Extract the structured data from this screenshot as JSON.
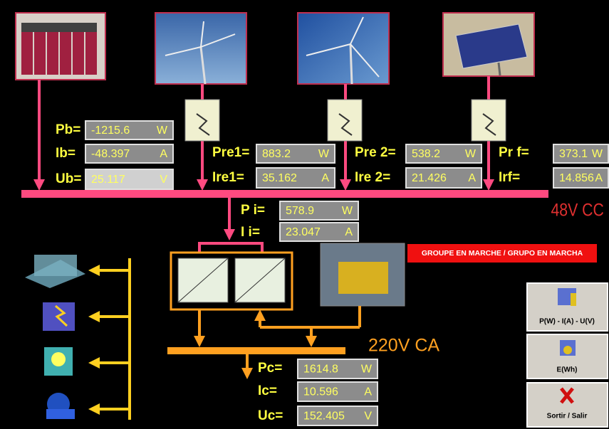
{
  "readings": [
    {
      "label": "Pb=",
      "value": -1215.6,
      "unit": "W"
    },
    {
      "label": "Ib=",
      "value": -48.397,
      "unit": "A"
    },
    {
      "label": "Ub=",
      "value": 25.117,
      "unit": "V",
      "value_color": "#e82020"
    },
    {
      "label": "Pre1=",
      "value": 883.2,
      "unit": "W"
    },
    {
      "label": "Ire1=",
      "value": 35.162,
      "unit": "A"
    },
    {
      "label": "Pre 2=",
      "value": 538.2,
      "unit": "W"
    },
    {
      "label": "Ire 2=",
      "value": 21.426,
      "unit": "A"
    },
    {
      "label": "Pr f=",
      "value": 373.1,
      "unit": "W"
    },
    {
      "label": "Irf=",
      "value": 14.856,
      "unit": "A"
    },
    {
      "label": "P i=",
      "value": 578.9,
      "unit": "W"
    },
    {
      "label": "I i=",
      "value": 23.047,
      "unit": "A"
    },
    {
      "label": "Pc=",
      "value": 1614.8,
      "unit": "W"
    },
    {
      "label": "Ic=",
      "value": 10.596,
      "unit": "A"
    },
    {
      "label": "Uc=",
      "value": 152.405,
      "unit": "V"
    }
  ],
  "dc_bus_label": "48V CC",
  "ac_bus_label": "220V CA",
  "status": "GROUPE EN MARCHE / GRUPO EN MARCHA",
  "buttons": [
    "P(W) - I(A) - U(V)",
    "E(Wh)",
    "Sortir / Salir"
  ]
}
